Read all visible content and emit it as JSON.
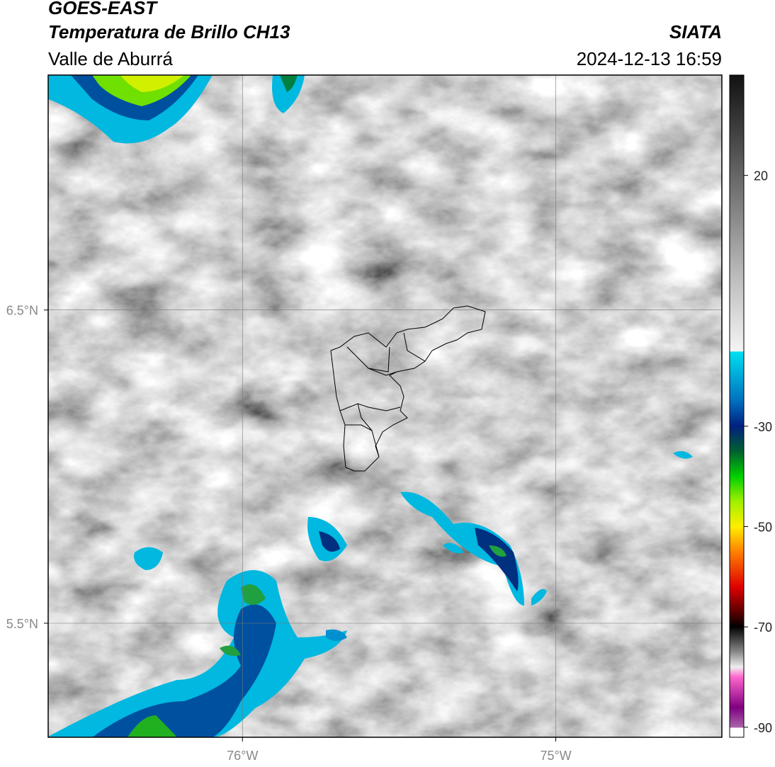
{
  "map": {
    "title": "GOES-EAST",
    "subtitle": "Temperatura de Brillo CH13",
    "source": "SIATA",
    "region": "Valle de Aburrá",
    "datetime": "2024-12-13 16:59",
    "lonlim": [
      -76.62,
      -74.47
    ],
    "latlim": [
      5.136,
      7.25
    ],
    "lonticks": [
      {
        "value": -76,
        "label": "76°W"
      },
      {
        "value": -75,
        "label": "75°W"
      }
    ],
    "latticks": [
      {
        "value": 6.5,
        "label": "6.5°N"
      },
      {
        "value": 5.5,
        "label": "5.5°N"
      }
    ],
    "grid": true,
    "colorbar": {
      "lim": [
        -92,
        40
      ],
      "ticks": [
        20,
        -30,
        -50,
        -70,
        -90
      ]
    }
  }
}
